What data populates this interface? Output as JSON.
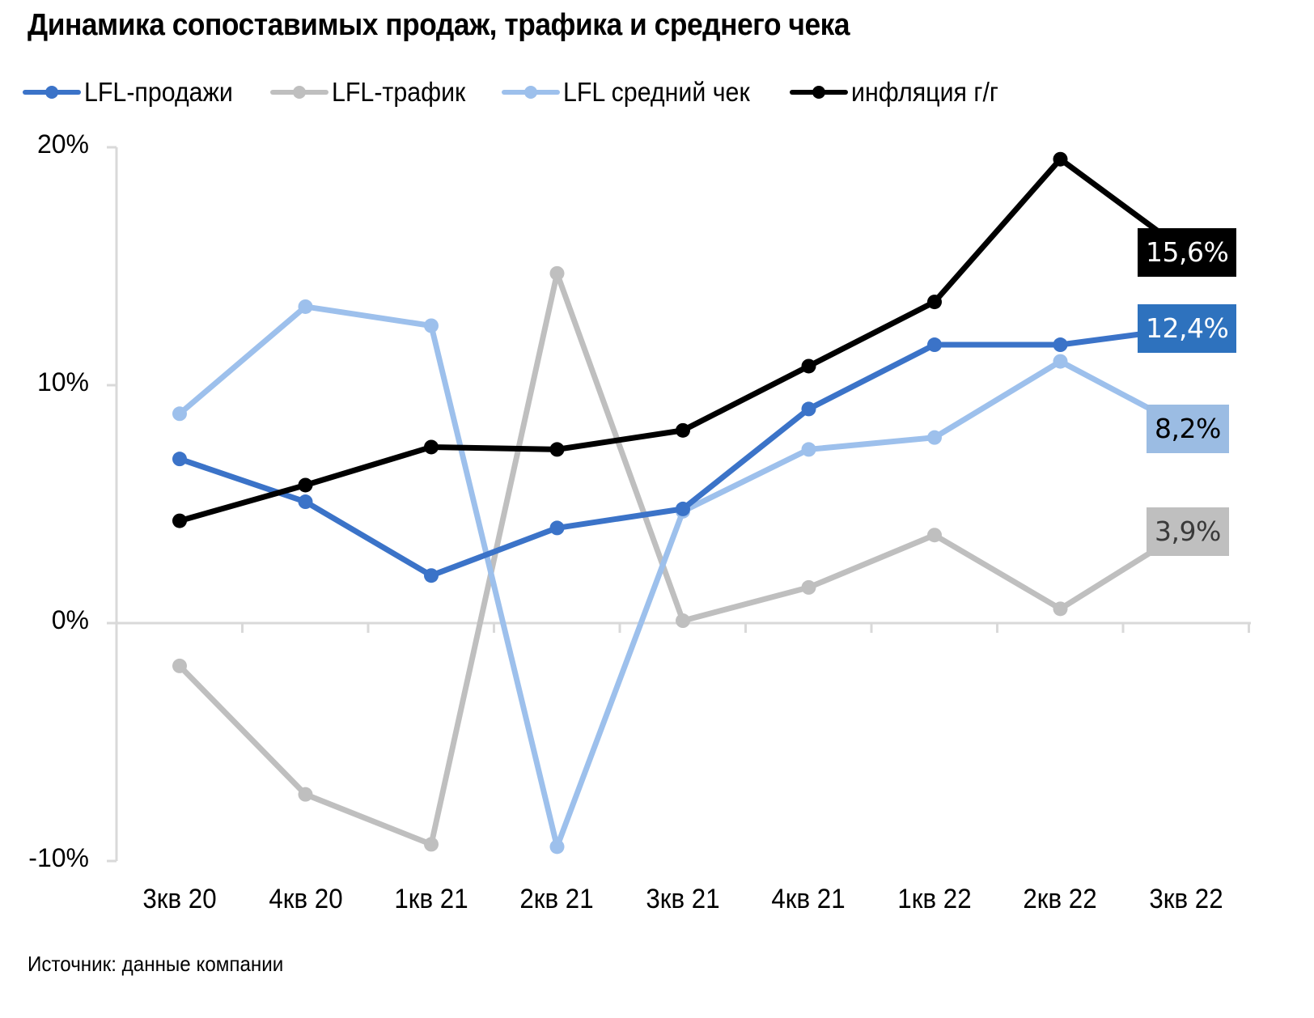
{
  "title": "Динамика сопоставимых продаж, трафика и среднего чека",
  "legend": [
    {
      "label": "LFL-продажи",
      "color": "#3B73C8"
    },
    {
      "label": "LFL-трафик",
      "color": "#BFBFBF"
    },
    {
      "label": "LFL средний чек",
      "color": "#9DC0EC"
    },
    {
      "label": "инфляция г/г",
      "color": "#000000"
    }
  ],
  "y_axis": {
    "ticks": [
      "20%",
      "10%",
      "0%",
      "-10%"
    ]
  },
  "x_axis": {
    "ticks": [
      "3кв 20",
      "4кв 20",
      "1кв 21",
      "2кв 21",
      "3кв 21",
      "4кв 21",
      "1кв 22",
      "2кв 22",
      "3кв 22"
    ]
  },
  "end_labels": {
    "inflation": {
      "text": "15,6%",
      "bg": "#000000",
      "fg": "#FFFFFF"
    },
    "sales": {
      "text": "12,4%",
      "bg": "#2E72BE",
      "fg": "#FFFFFF"
    },
    "avg_check": {
      "text": "8,2%",
      "bg": "#9BBCE3",
      "fg": "#000000"
    },
    "traffic": {
      "text": "3,9%",
      "bg": "#BFBFBF",
      "fg": "#3A3A3A"
    }
  },
  "source": "Источник: данные компании",
  "chart_data": {
    "type": "line",
    "title": "Динамика сопоставимых продаж, трафика и среднего чека",
    "xlabel": "",
    "ylabel": "",
    "categories": [
      "3кв 20",
      "4кв 20",
      "1кв 21",
      "2кв 21",
      "3кв 21",
      "4кв 21",
      "1кв 22",
      "2кв 22",
      "3кв 22"
    ],
    "ylim": [
      -10,
      20
    ],
    "yticks": [
      -10,
      0,
      10,
      20
    ],
    "y_format": "percent",
    "grid": false,
    "legend_position": "top",
    "series": [
      {
        "name": "LFL-продажи",
        "color": "#3B73C8",
        "values": [
          6.9,
          5.1,
          2.0,
          4.0,
          4.8,
          9.0,
          11.7,
          11.7,
          12.4
        ]
      },
      {
        "name": "LFL-трафик",
        "color": "#BFBFBF",
        "values": [
          -1.8,
          -7.2,
          -9.3,
          14.7,
          0.1,
          1.5,
          3.7,
          0.6,
          3.9
        ]
      },
      {
        "name": "LFL средний чек",
        "color": "#9DC0EC",
        "values": [
          8.8,
          13.3,
          12.5,
          -9.4,
          4.7,
          7.3,
          7.8,
          11.0,
          8.2
        ]
      },
      {
        "name": "инфляция г/г",
        "color": "#000000",
        "values": [
          4.3,
          5.8,
          7.4,
          7.3,
          8.1,
          10.8,
          13.5,
          19.5,
          15.6
        ]
      }
    ],
    "annotations": [
      {
        "series": "инфляция г/г",
        "category": "3кв 22",
        "text": "15,6%"
      },
      {
        "series": "LFL-продажи",
        "category": "3кв 22",
        "text": "12,4%"
      },
      {
        "series": "LFL средний чек",
        "category": "3кв 22",
        "text": "8,2%"
      },
      {
        "series": "LFL-трафик",
        "category": "3кв 22",
        "text": "3,9%"
      }
    ],
    "source": "Источник: данные компании"
  }
}
